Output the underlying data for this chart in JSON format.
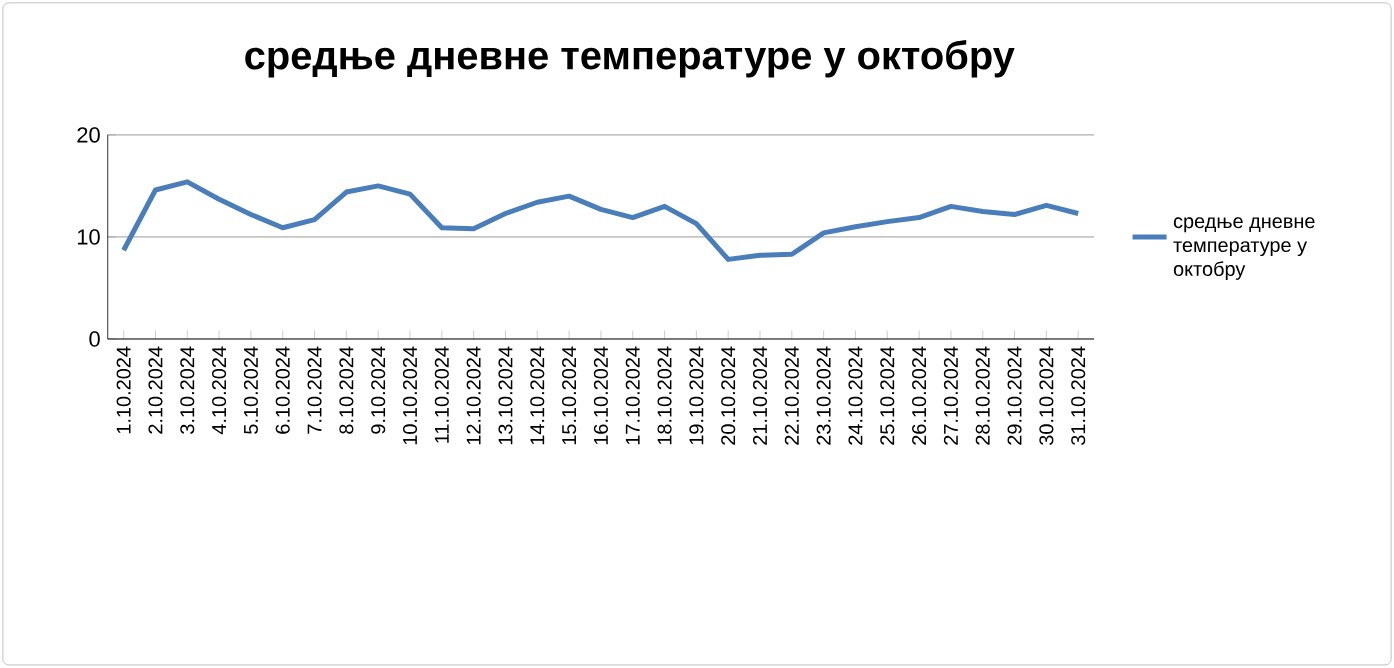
{
  "chart_data": {
    "type": "line",
    "title": "средње дневне температуре у октобру",
    "categories": [
      "1.10.2024",
      "2.10.2024",
      "3.10.2024",
      "4.10.2024",
      "5.10.2024",
      "6.10.2024",
      "7.10.2024",
      "8.10.2024",
      "9.10.2024",
      "10.10.2024",
      "11.10.2024",
      "12.10.2024",
      "13.10.2024",
      "14.10.2024",
      "15.10.2024",
      "16.10.2024",
      "17.10.2024",
      "18.10.2024",
      "19.10.2024",
      "20.10.2024",
      "21.10.2024",
      "22.10.2024",
      "23.10.2024",
      "24.10.2024",
      "25.10.2024",
      "26.10.2024",
      "27.10.2024",
      "28.10.2024",
      "29.10.2024",
      "30.10.2024",
      "31.10.2024"
    ],
    "series": [
      {
        "name": "средње дневне температуре у октобру",
        "color": "#4a7ebb",
        "values": [
          8.7,
          14.6,
          15.4,
          13.7,
          12.2,
          10.9,
          11.7,
          14.4,
          15.0,
          14.2,
          10.9,
          10.8,
          12.3,
          13.4,
          14.0,
          12.7,
          11.9,
          13.0,
          11.3,
          7.8,
          8.2,
          8.3,
          10.4,
          11.0,
          11.5,
          11.9,
          13.0,
          12.5,
          12.2,
          13.1,
          12.3
        ]
      }
    ],
    "ylim": [
      0,
      20
    ],
    "yticks": [
      0,
      10,
      20
    ],
    "grid": "y",
    "legend": "right",
    "marker": "none",
    "line_style": "solid"
  }
}
